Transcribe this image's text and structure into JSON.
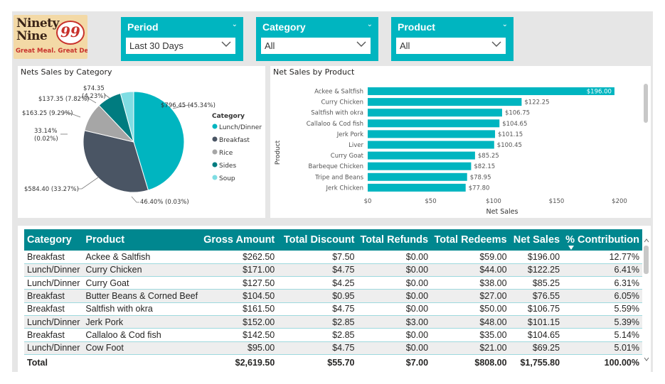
{
  "logo": {
    "line1": "Ninety",
    "line2": "Nine",
    "badge": "99",
    "tagline": "Great Meal. Great Deal."
  },
  "slicers": [
    {
      "title": "Period",
      "value": "Last 30 Days"
    },
    {
      "title": "Category",
      "value": "All"
    },
    {
      "title": "Product",
      "value": "All"
    }
  ],
  "pie": {
    "title": "Nets Sales by Category",
    "legend_title": "Category",
    "slices": [
      {
        "name": "Lunch/Dinner",
        "value": 796.45,
        "label": "$796.45 (45.34%)",
        "color": "#00b5c0"
      },
      {
        "name": "Breakfast",
        "value": 584.4,
        "label": "$584.40 (33.27%)",
        "color": "#4a5564"
      },
      {
        "name": "Rice",
        "value": 163.25,
        "label": "$163.25 (9.29%)",
        "color": "#a6a6a6"
      },
      {
        "name": "Sides",
        "value": 137.35,
        "label": "$137.35 (7.82%)",
        "color": "#007c80"
      },
      {
        "name": "Soup",
        "value": 74.35,
        "label1": "$74.35",
        "label2": "(4.23%)",
        "color": "#7fdde3"
      }
    ],
    "extra_label_left1": "33.14%",
    "extra_label_left2": "(0.02%)",
    "extra_label_bottom": "46.40% (0.03%)"
  },
  "chart_data": {
    "type": "bar",
    "orientation": "horizontal",
    "title": "Net Sales by Product",
    "xlabel": "Net Sales",
    "ylabel": "Product",
    "xlim": [
      0,
      200
    ],
    "xticks": [
      "$0",
      "$50",
      "$100",
      "$150",
      "$200"
    ],
    "categories": [
      "Ackee & Saltfish",
      "Curry Chicken",
      "Saltfish with okra",
      "Callaloo & Cod fish",
      "Jerk Pork",
      "Liver",
      "Curry Goat",
      "Barbeque Chicken",
      "Tripe and Beans",
      "Jerk Chicken"
    ],
    "values": [
      196.0,
      122.25,
      106.75,
      104.65,
      101.15,
      100.45,
      85.25,
      82.15,
      78.95,
      77.8
    ],
    "labels": [
      "$196.00",
      "$122.25",
      "$106.75",
      "$104.65",
      "$101.15",
      "$100.45",
      "$85.25",
      "$82.15",
      "$78.95",
      "$77.80"
    ],
    "color": "#00b5c0"
  },
  "table": {
    "columns": [
      "Category",
      "Product",
      "Gross Amount",
      "Total Discount",
      "Total Refunds",
      "Total Redeems",
      "Net Sales",
      "% Contribution"
    ],
    "rows": [
      [
        "Breakfast",
        "Ackee & Saltfish",
        "$262.50",
        "$7.50",
        "$0.00",
        "$59.00",
        "$196.00",
        "12.77%"
      ],
      [
        "Lunch/Dinner",
        "Curry Chicken",
        "$171.00",
        "$4.75",
        "$0.00",
        "$44.00",
        "$122.25",
        "6.41%"
      ],
      [
        "Lunch/Dinner",
        "Curry Goat",
        "$127.50",
        "$4.25",
        "$0.00",
        "$38.00",
        "$85.25",
        "6.31%"
      ],
      [
        "Breakfast",
        "Butter Beans & Corned Beef",
        "$104.50",
        "$0.95",
        "$0.00",
        "$27.00",
        "$76.55",
        "6.05%"
      ],
      [
        "Breakfast",
        "Saltfish with okra",
        "$161.50",
        "$4.75",
        "$0.00",
        "$50.00",
        "$106.75",
        "5.59%"
      ],
      [
        "Lunch/Dinner",
        "Jerk Pork",
        "$152.00",
        "$2.85",
        "$3.00",
        "$48.00",
        "$101.15",
        "5.39%"
      ],
      [
        "Breakfast",
        "Callaloo & Cod fish",
        "$142.50",
        "$2.85",
        "$0.00",
        "$35.00",
        "$104.65",
        "5.14%"
      ],
      [
        "Lunch/Dinner",
        "Cow Foot",
        "$95.00",
        "$4.75",
        "$0.00",
        "$21.00",
        "$69.25",
        "5.01%"
      ]
    ],
    "total": [
      "Total",
      "",
      "$2,619.50",
      "$55.70",
      "$7.00",
      "$808.00",
      "$1,755.80",
      "100.00%"
    ]
  }
}
